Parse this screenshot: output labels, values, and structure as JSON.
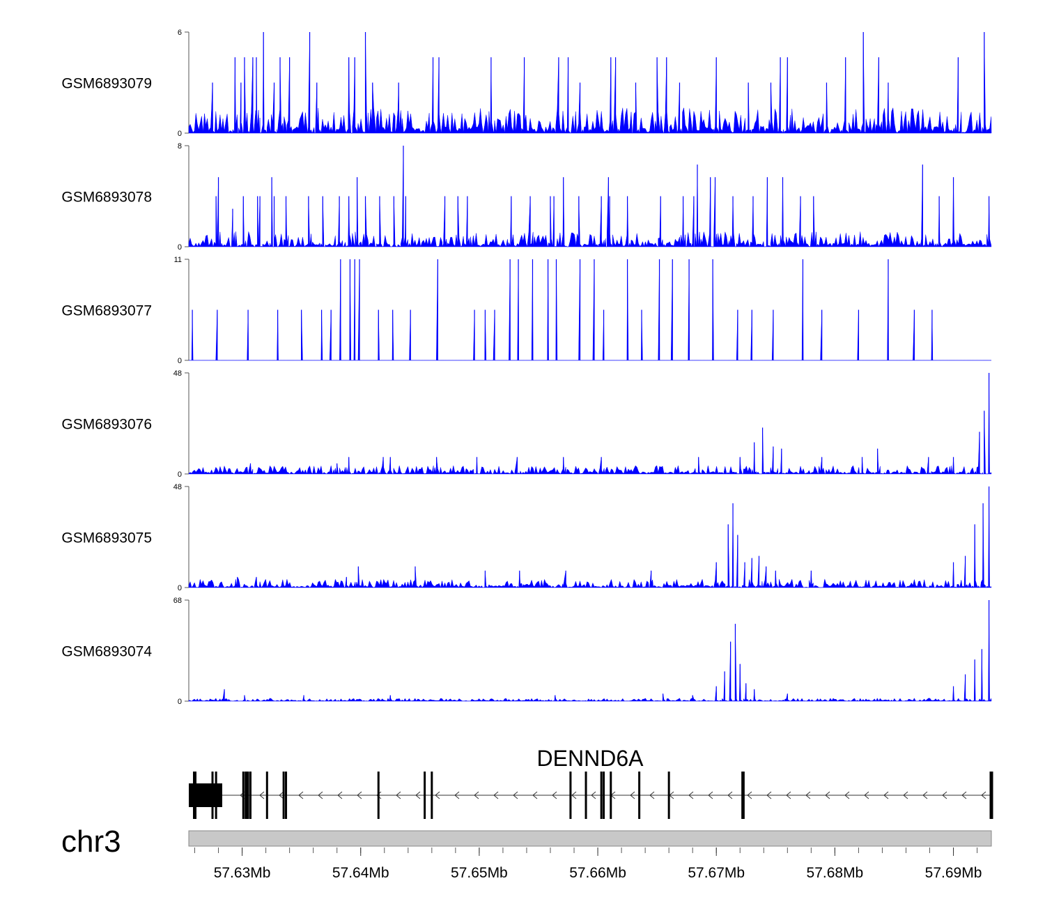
{
  "chart_data": {
    "type": "area",
    "title": "",
    "xlabel": "",
    "ylabel": "",
    "x_range": [
      57.6255,
      57.6932
    ],
    "x_unit": "Mb",
    "tracks": [
      {
        "name": "GSM6893079",
        "ylim": [
          0,
          6
        ],
        "ymax_label": "6",
        "ymin_label": "0",
        "color": "#0000ff",
        "peaks": [
          [
            57.6275,
            3
          ],
          [
            57.6294,
            4.5
          ],
          [
            57.6299,
            3
          ],
          [
            57.6302,
            4.5
          ],
          [
            57.6309,
            4.5
          ],
          [
            57.6312,
            4.5
          ],
          [
            57.6318,
            6
          ],
          [
            57.6327,
            3
          ],
          [
            57.6332,
            4.5
          ],
          [
            57.634,
            4.5
          ],
          [
            57.6357,
            6
          ],
          [
            57.6363,
            3
          ],
          [
            57.639,
            4.5
          ],
          [
            57.6395,
            4.5
          ],
          [
            57.6404,
            6
          ],
          [
            57.641,
            3
          ],
          [
            57.6432,
            3
          ],
          [
            57.6461,
            4.5
          ],
          [
            57.6466,
            4.5
          ],
          [
            57.651,
            4.5
          ],
          [
            57.6538,
            4.5
          ],
          [
            57.6567,
            4.5
          ],
          [
            57.6575,
            4.5
          ],
          [
            57.6585,
            3
          ],
          [
            57.6611,
            4.5
          ],
          [
            57.6615,
            4.5
          ],
          [
            57.6632,
            3
          ],
          [
            57.665,
            4.5
          ],
          [
            57.6658,
            4.5
          ],
          [
            57.6669,
            3
          ],
          [
            57.67,
            4.5
          ],
          [
            57.6727,
            3
          ],
          [
            57.6746,
            3
          ],
          [
            57.6754,
            4.5
          ],
          [
            57.676,
            4.5
          ],
          [
            57.6793,
            3
          ],
          [
            57.6809,
            4.5
          ],
          [
            57.6824,
            6
          ],
          [
            57.6837,
            4.5
          ],
          [
            57.6845,
            3
          ],
          [
            57.6904,
            4.5
          ],
          [
            57.6926,
            6
          ]
        ],
        "base_noise": 1.5,
        "seed": 11
      },
      {
        "name": "GSM6893078",
        "ylim": [
          0,
          8
        ],
        "ymax_label": "8",
        "ymin_label": "0",
        "color": "#0000ff",
        "peaks": [
          [
            57.6278,
            4
          ],
          [
            57.628,
            5.5
          ],
          [
            57.6292,
            3
          ],
          [
            57.6301,
            4
          ],
          [
            57.6313,
            4
          ],
          [
            57.6315,
            4
          ],
          [
            57.6325,
            5.5
          ],
          [
            57.6327,
            4
          ],
          [
            57.6337,
            4
          ],
          [
            57.6356,
            4
          ],
          [
            57.6368,
            4
          ],
          [
            57.6382,
            4
          ],
          [
            57.639,
            4
          ],
          [
            57.6397,
            5.5
          ],
          [
            57.6404,
            4
          ],
          [
            57.6416,
            4
          ],
          [
            57.6428,
            4
          ],
          [
            57.6436,
            8
          ],
          [
            57.6438,
            4
          ],
          [
            57.6471,
            4
          ],
          [
            57.6482,
            4
          ],
          [
            57.649,
            4
          ],
          [
            57.6527,
            4
          ],
          [
            57.6543,
            4
          ],
          [
            57.656,
            4
          ],
          [
            57.6563,
            4
          ],
          [
            57.6571,
            5.5
          ],
          [
            57.6584,
            4
          ],
          [
            57.6603,
            4
          ],
          [
            57.6609,
            5.5
          ],
          [
            57.661,
            4
          ],
          [
            57.6625,
            4
          ],
          [
            57.6653,
            4
          ],
          [
            57.6672,
            4
          ],
          [
            57.6681,
            4
          ],
          [
            57.6684,
            6.5
          ],
          [
            57.6695,
            5.5
          ],
          [
            57.6699,
            5.5
          ],
          [
            57.6714,
            4
          ],
          [
            57.6731,
            4
          ],
          [
            57.6743,
            5.5
          ],
          [
            57.6756,
            5.5
          ],
          [
            57.6771,
            4
          ],
          [
            57.6782,
            4
          ],
          [
            57.6874,
            6.5
          ],
          [
            57.6888,
            4
          ],
          [
            57.69,
            5.5
          ],
          [
            57.693,
            4
          ]
        ],
        "base_noise": 1.2,
        "seed": 23
      },
      {
        "name": "GSM6893077",
        "ylim": [
          0,
          11
        ],
        "ymax_label": "11",
        "ymin_label": "0",
        "color": "#0000ff",
        "peaks": [
          [
            57.6258,
            5.5
          ],
          [
            57.6279,
            5.5
          ],
          [
            57.6305,
            5.5
          ],
          [
            57.633,
            5.5
          ],
          [
            57.635,
            5.5
          ],
          [
            57.6367,
            5.5
          ],
          [
            57.6375,
            5.5
          ],
          [
            57.6383,
            11
          ],
          [
            57.6391,
            11
          ],
          [
            57.6395,
            11
          ],
          [
            57.6399,
            11
          ],
          [
            57.6415,
            5.5
          ],
          [
            57.6427,
            5.5
          ],
          [
            57.6442,
            5.5
          ],
          [
            57.6465,
            11
          ],
          [
            57.6496,
            5.5
          ],
          [
            57.6505,
            5.5
          ],
          [
            57.6513,
            5.5
          ],
          [
            57.6526,
            11
          ],
          [
            57.6533,
            11
          ],
          [
            57.6545,
            11
          ],
          [
            57.6558,
            11
          ],
          [
            57.6565,
            11
          ],
          [
            57.6585,
            11
          ],
          [
            57.6597,
            11
          ],
          [
            57.6605,
            5.5
          ],
          [
            57.6625,
            11
          ],
          [
            57.6637,
            5.5
          ],
          [
            57.6652,
            11
          ],
          [
            57.6663,
            11
          ],
          [
            57.6677,
            11
          ],
          [
            57.6697,
            11
          ],
          [
            57.6718,
            5.5
          ],
          [
            57.673,
            5.5
          ],
          [
            57.6748,
            5.5
          ],
          [
            57.6773,
            11
          ],
          [
            57.6789,
            5.5
          ],
          [
            57.682,
            5.5
          ],
          [
            57.6845,
            11
          ],
          [
            57.6867,
            5.5
          ],
          [
            57.6882,
            5.5
          ]
        ],
        "base_noise": 0,
        "seed": 37
      },
      {
        "name": "GSM6893076",
        "ylim": [
          0,
          48
        ],
        "ymax_label": "48",
        "ymin_label": "0",
        "color": "#0000ff",
        "peaks": [
          [
            57.6307,
            5
          ],
          [
            57.638,
            5
          ],
          [
            57.639,
            8
          ],
          [
            57.6419,
            8
          ],
          [
            57.6425,
            8
          ],
          [
            57.6464,
            8
          ],
          [
            57.6498,
            8
          ],
          [
            57.6532,
            8
          ],
          [
            57.6571,
            8
          ],
          [
            57.6603,
            8
          ],
          [
            57.6685,
            8
          ],
          [
            57.672,
            8
          ],
          [
            57.6732,
            15
          ],
          [
            57.6739,
            22
          ],
          [
            57.6748,
            13
          ],
          [
            57.6755,
            12
          ],
          [
            57.6789,
            8
          ],
          [
            57.6823,
            8
          ],
          [
            57.6836,
            12
          ],
          [
            57.6879,
            8
          ],
          [
            57.69,
            8
          ],
          [
            57.6922,
            20
          ],
          [
            57.6926,
            30
          ],
          [
            57.693,
            48
          ]
        ],
        "base_noise": 4,
        "seed": 51
      },
      {
        "name": "GSM6893075",
        "ylim": [
          0,
          48
        ],
        "ymax_label": "48",
        "ymin_label": "0",
        "color": "#0000ff",
        "peaks": [
          [
            57.6296,
            5
          ],
          [
            57.6312,
            5
          ],
          [
            57.6388,
            5
          ],
          [
            57.6398,
            10
          ],
          [
            57.6446,
            10
          ],
          [
            57.6505,
            8
          ],
          [
            57.6534,
            8
          ],
          [
            57.6573,
            8
          ],
          [
            57.6645,
            8
          ],
          [
            57.67,
            12
          ],
          [
            57.671,
            30
          ],
          [
            57.6714,
            40
          ],
          [
            57.6718,
            25
          ],
          [
            57.6724,
            12
          ],
          [
            57.673,
            14
          ],
          [
            57.6736,
            15
          ],
          [
            57.6742,
            10
          ],
          [
            57.675,
            8
          ],
          [
            57.678,
            8
          ],
          [
            57.69,
            12
          ],
          [
            57.691,
            15
          ],
          [
            57.6918,
            30
          ],
          [
            57.6925,
            40
          ],
          [
            57.693,
            48
          ]
        ],
        "base_noise": 4,
        "seed": 67
      },
      {
        "name": "GSM6893074",
        "ylim": [
          0,
          68
        ],
        "ymax_label": "68",
        "ymin_label": "0",
        "color": "#0000ff",
        "peaks": [
          [
            57.6285,
            8
          ],
          [
            57.6302,
            4
          ],
          [
            57.6352,
            4
          ],
          [
            57.6425,
            4
          ],
          [
            57.6564,
            4
          ],
          [
            57.6655,
            5
          ],
          [
            57.668,
            4
          ],
          [
            57.67,
            10
          ],
          [
            57.6707,
            20
          ],
          [
            57.6712,
            40
          ],
          [
            57.6716,
            52
          ],
          [
            57.672,
            25
          ],
          [
            57.6725,
            12
          ],
          [
            57.6732,
            8
          ],
          [
            57.676,
            5
          ],
          [
            57.69,
            10
          ],
          [
            57.691,
            18
          ],
          [
            57.6918,
            28
          ],
          [
            57.6924,
            35
          ],
          [
            57.693,
            68
          ]
        ],
        "base_noise": 2,
        "seed": 79
      }
    ],
    "gene": {
      "name": "DENND6A",
      "strand": "-",
      "exons": [
        57.626,
        57.6275,
        57.6278,
        57.6301,
        57.6303,
        57.6304,
        57.6305,
        57.6307,
        57.6321,
        57.6335,
        57.6337,
        57.6415,
        57.6454,
        57.646,
        57.6577,
        57.659,
        57.6603,
        57.6605,
        57.6611,
        57.6635,
        57.666,
        57.6722,
        57.6723,
        57.6932
      ]
    },
    "chromosome": "chr3",
    "x_ticks": [
      {
        "value": 57.63,
        "label": "57.63Mb"
      },
      {
        "value": 57.64,
        "label": "57.64Mb"
      },
      {
        "value": 57.65,
        "label": "57.65Mb"
      },
      {
        "value": 57.66,
        "label": "57.66Mb"
      },
      {
        "value": 57.67,
        "label": "57.67Mb"
      },
      {
        "value": 57.68,
        "label": "57.68Mb"
      },
      {
        "value": 57.69,
        "label": "57.69Mb"
      }
    ]
  }
}
